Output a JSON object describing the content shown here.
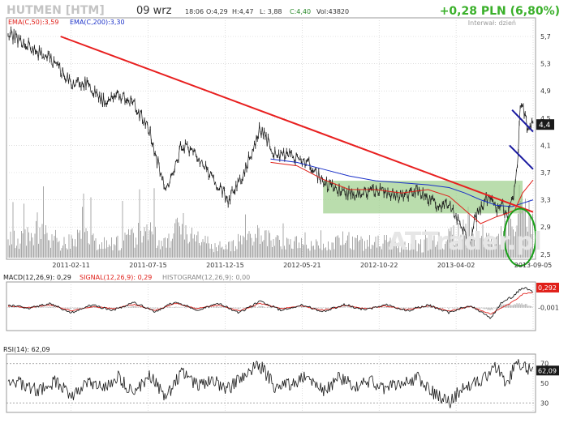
{
  "header": {
    "ticker": "HUTMEN [HTM]",
    "date": "09 wrz",
    "time": "18:06",
    "open": "O:4,29",
    "high": "H:4,47",
    "low": "L: 3,88",
    "close": "C:4,40",
    "volume": "Vol:43820",
    "change": "+0,28 PLN (6,80%)",
    "interval": "Interwał: dzień"
  },
  "colors": {
    "price": "#1a1a1a",
    "ema50": "#e0201a",
    "ema200": "#1a30c8",
    "trendline": "#e82020",
    "trend_channel": "#1a1aa0",
    "consolidation_box": "#9ccf8a",
    "highlight_ellipse": "#1aa01a",
    "volume": "#a8a8a8",
    "change_text": "#3ab02a",
    "label_bg": "#1a1a1a",
    "grid": "#c8c8c8"
  },
  "watermark": "ATTrader.pl",
  "chart_data": [
    {
      "type": "line",
      "title": "HUTMEN [HTM]",
      "x_tick_labels": [
        "2011-02-11",
        "2011-07-15",
        "2011-12-15",
        "2012-05-21",
        "2012-10-22",
        "2013-04-02",
        "2013-09-05"
      ],
      "y_ticks": [
        2.5,
        2.9,
        3.3,
        3.7,
        4.1,
        4.5,
        4.9,
        5.3,
        5.7
      ],
      "y_tick_labels": [
        "2,5",
        "2,9",
        "3,3",
        "3,7",
        "4,1",
        "4,5",
        "4,9",
        "5,3",
        "5,7"
      ],
      "ylim": [
        2.45,
        5.95
      ],
      "last_value_label": "4,4",
      "series": [
        {
          "name": "",
          "kind": "price",
          "x": [
            0,
            0.03,
            0.06,
            0.09,
            0.12,
            0.15,
            0.18,
            0.21,
            0.24,
            0.27,
            0.3,
            0.33,
            0.36,
            0.39,
            0.42,
            0.45,
            0.48,
            0.51,
            0.54,
            0.57,
            0.6,
            0.63,
            0.66,
            0.69,
            0.72,
            0.75,
            0.78,
            0.8,
            0.82,
            0.84,
            0.86,
            0.88,
            0.89,
            0.9,
            0.91,
            0.93,
            0.94,
            0.95,
            0.96,
            0.97,
            0.975,
            0.98,
            0.99,
            1.0
          ],
          "values": [
            5.75,
            5.6,
            5.45,
            5.3,
            5.0,
            5.0,
            4.75,
            4.85,
            4.7,
            4.3,
            3.4,
            4.1,
            3.95,
            3.6,
            3.3,
            3.7,
            4.35,
            3.95,
            3.95,
            3.85,
            3.55,
            3.45,
            3.35,
            3.45,
            3.4,
            3.35,
            3.45,
            3.3,
            3.2,
            3.25,
            3.0,
            2.65,
            3.05,
            3.15,
            3.35,
            3.15,
            3.3,
            3.05,
            3.25,
            3.8,
            4.6,
            4.7,
            4.3,
            4.4
          ]
        },
        {
          "name": "EMA(C,50)",
          "label": "EMA(C,50):3,59",
          "kind": "ema50",
          "x": [
            0.5,
            0.55,
            0.6,
            0.65,
            0.7,
            0.75,
            0.8,
            0.84,
            0.87,
            0.9,
            0.93,
            0.95,
            0.965,
            0.98,
            1.0
          ],
          "values": [
            3.85,
            3.8,
            3.6,
            3.45,
            3.45,
            3.4,
            3.45,
            3.35,
            3.15,
            2.95,
            3.05,
            3.1,
            3.15,
            3.4,
            3.59
          ]
        },
        {
          "name": "EMA(C,200)",
          "label": "EMA(C,200):3,30",
          "kind": "ema200",
          "x": [
            0.5,
            0.55,
            0.6,
            0.65,
            0.7,
            0.75,
            0.8,
            0.84,
            0.87,
            0.9,
            0.93,
            0.96,
            1.0
          ],
          "values": [
            3.9,
            3.85,
            3.75,
            3.65,
            3.58,
            3.55,
            3.52,
            3.48,
            3.4,
            3.3,
            3.22,
            3.2,
            3.3
          ]
        }
      ],
      "annotations": {
        "trendline": {
          "x": [
            0.1,
            1.0
          ],
          "values": [
            5.7,
            3.12
          ]
        },
        "trend_channel": [
          {
            "x": [
              0.96,
              1.0
            ],
            "values": [
              4.62,
              4.3
            ]
          },
          {
            "x": [
              0.955,
              1.0
            ],
            "values": [
              4.1,
              3.75
            ]
          }
        ],
        "consolidation_box": {
          "x": [
            0.6,
            0.98
          ],
          "values": [
            3.1,
            3.58
          ]
        },
        "highlight_ellipse": {
          "x_center": 0.975,
          "value_center": 2.75,
          "x_halfwidth": 0.03,
          "value_halfheight": 0.42
        }
      },
      "volume": {
        "x": [
          0.02,
          0.06,
          0.1,
          0.14,
          0.2,
          0.26,
          0.3,
          0.33,
          0.36,
          0.4,
          0.44,
          0.48,
          0.52,
          0.56,
          0.6,
          0.64,
          0.68,
          0.72,
          0.76,
          0.8,
          0.84,
          0.88,
          0.92,
          0.95,
          0.97,
          0.99
        ],
        "values": [
          0.35,
          0.6,
          0.3,
          0.4,
          0.25,
          0.5,
          0.3,
          0.6,
          0.35,
          0.2,
          0.3,
          0.45,
          0.25,
          0.3,
          0.2,
          0.35,
          0.25,
          0.3,
          0.2,
          0.25,
          0.4,
          0.6,
          0.3,
          0.5,
          0.7,
          0.9
        ]
      }
    },
    {
      "type": "line",
      "title": "MACD(12,26,9):0,29",
      "legend": [
        "MACD(12,26,9): 0,29",
        "SIGNAL(12,26,9): 0,29",
        "HISTOGRAM(12,26,9): 0,00"
      ],
      "y_tick_labels": [
        "-0,001"
      ],
      "last_value_label": "0,292",
      "ylim": [
        -0.4,
        0.45
      ],
      "series": [
        {
          "name": "MACD(12,26,9)",
          "kind": "macd",
          "x": [
            0,
            0.04,
            0.08,
            0.12,
            0.16,
            0.2,
            0.24,
            0.28,
            0.32,
            0.36,
            0.4,
            0.44,
            0.48,
            0.52,
            0.56,
            0.6,
            0.64,
            0.68,
            0.72,
            0.76,
            0.8,
            0.84,
            0.88,
            0.92,
            0.94,
            0.96,
            0.98,
            1.0
          ],
          "values": [
            0.05,
            -0.02,
            0.08,
            -0.1,
            0.05,
            -0.05,
            0.1,
            -0.08,
            0.12,
            -0.05,
            0.08,
            -0.1,
            0.12,
            -0.05,
            0.05,
            -0.08,
            0.06,
            -0.04,
            0.05,
            -0.06,
            0.05,
            -0.1,
            0.05,
            -0.2,
            0.1,
            0.2,
            0.38,
            0.29
          ]
        },
        {
          "name": "SIGNAL(12,26,9)",
          "kind": "signal",
          "x": [
            0,
            0.04,
            0.08,
            0.12,
            0.16,
            0.2,
            0.24,
            0.28,
            0.32,
            0.36,
            0.4,
            0.44,
            0.48,
            0.52,
            0.56,
            0.6,
            0.64,
            0.68,
            0.72,
            0.76,
            0.8,
            0.84,
            0.88,
            0.92,
            0.94,
            0.96,
            0.98,
            1.0
          ],
          "values": [
            0.03,
            0.0,
            0.05,
            -0.06,
            0.02,
            -0.02,
            0.06,
            -0.05,
            0.08,
            -0.02,
            0.05,
            -0.06,
            0.08,
            -0.02,
            0.03,
            -0.05,
            0.04,
            -0.02,
            0.03,
            -0.04,
            0.03,
            -0.06,
            0.02,
            -0.12,
            0.0,
            0.1,
            0.25,
            0.29
          ]
        }
      ]
    },
    {
      "type": "line",
      "title": "RSI(14): 62,09",
      "legend": [
        "RSI(14): 62,09"
      ],
      "y_ticks": [
        30,
        50,
        70
      ],
      "y_tick_labels": [
        "30",
        "50",
        "70"
      ],
      "last_value_label": "62,09",
      "ylim": [
        22,
        78
      ],
      "reference_lines": [
        30,
        70
      ],
      "series": [
        {
          "name": "RSI(14)",
          "kind": "rsi",
          "x": [
            0,
            0.03,
            0.06,
            0.09,
            0.12,
            0.15,
            0.18,
            0.21,
            0.24,
            0.27,
            0.3,
            0.33,
            0.36,
            0.39,
            0.42,
            0.45,
            0.48,
            0.51,
            0.54,
            0.57,
            0.6,
            0.63,
            0.66,
            0.69,
            0.72,
            0.75,
            0.78,
            0.81,
            0.84,
            0.87,
            0.9,
            0.93,
            0.95,
            0.97,
            0.985,
            1.0
          ],
          "values": [
            55,
            48,
            42,
            52,
            38,
            50,
            45,
            56,
            40,
            58,
            35,
            62,
            48,
            52,
            44,
            60,
            68,
            45,
            50,
            58,
            42,
            55,
            48,
            52,
            45,
            50,
            55,
            40,
            30,
            48,
            52,
            68,
            50,
            72,
            66,
            62.09
          ]
        }
      ]
    }
  ]
}
